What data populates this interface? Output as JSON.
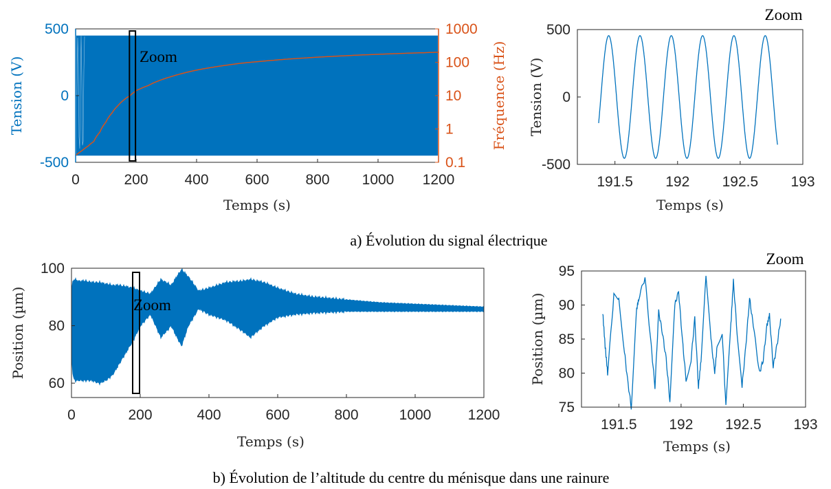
{
  "colors": {
    "blue": "#0072bd",
    "orange": "#d95319",
    "axis": "#262626",
    "black": "#000000"
  },
  "captions": {
    "a": "a) Évolution du signal électrique",
    "b": "b) Évolution de l’altitude du centre du ménisque dans une rainure"
  },
  "chart_data": [
    {
      "id": "a-main",
      "type": "line",
      "xlabel": "Temps (s)",
      "ylabel": "Tension (V)",
      "y2label": "Fréquence (Hz)",
      "xlim": [
        0,
        1200
      ],
      "ylim": [
        -500,
        500
      ],
      "y2lim": [
        0.1,
        1000
      ],
      "y2scale": "log",
      "xticks": [
        "0",
        "200",
        "400",
        "600",
        "800",
        "1000",
        "1200"
      ],
      "yticks": [
        "-500",
        "0",
        "500"
      ],
      "y2ticks": [
        "0.1",
        "1",
        "10",
        "100",
        "1000"
      ],
      "voltage_amplitude": 450,
      "frequency_curve": {
        "x": [
          0,
          20,
          40,
          60,
          80,
          100,
          120,
          140,
          160,
          180,
          200,
          240,
          280,
          320,
          360,
          400,
          450,
          500,
          550,
          600,
          650,
          700,
          750,
          800,
          850,
          900,
          950,
          1000,
          1050,
          1100,
          1150,
          1200
        ],
        "y": [
          0.16,
          0.22,
          0.3,
          0.42,
          0.8,
          1.6,
          3.0,
          5.0,
          7.5,
          10,
          14,
          20,
          29,
          38,
          48,
          58,
          70,
          82,
          94,
          104,
          114,
          124,
          133,
          142,
          150,
          158,
          166,
          173,
          180,
          187,
          193,
          200
        ]
      },
      "annotation": "Zoom",
      "zoom_box_x": [
        178,
        198
      ]
    },
    {
      "id": "a-zoom",
      "type": "line",
      "title": "Zoom",
      "xlabel": "Temps (s)",
      "ylabel": "Tension (V)",
      "xlim": [
        191.2,
        193
      ],
      "ylim": [
        -500,
        500
      ],
      "xticks": [
        "191.5",
        "192",
        "192.5",
        "193"
      ],
      "yticks": [
        "-500",
        "0",
        "500"
      ],
      "signal": {
        "x_start": 191.37,
        "x_end": 192.8,
        "amplitude": 455,
        "period": 0.25,
        "first_peak": 191.45
      }
    },
    {
      "id": "b-main",
      "type": "line",
      "xlabel": "Temps (s)",
      "ylabel": "Position (µm)",
      "xlim": [
        0,
        1200
      ],
      "ylim": [
        55,
        100
      ],
      "xticks": [
        "0",
        "200",
        "400",
        "600",
        "800",
        "1000",
        "1200"
      ],
      "yticks": [
        "60",
        "80",
        "100"
      ],
      "envelope": {
        "x": [
          0,
          5,
          10,
          20,
          40,
          60,
          80,
          100,
          120,
          140,
          160,
          180,
          200,
          230,
          260,
          290,
          320,
          340,
          370,
          400,
          450,
          500,
          520,
          560,
          600,
          650,
          700,
          800,
          900,
          1000,
          1100,
          1200
        ],
        "upper": [
          92,
          96,
          96,
          95.5,
          95.5,
          95,
          95,
          94.5,
          94,
          94,
          93.5,
          93,
          92,
          91,
          96,
          94,
          99.5,
          97,
          92,
          93,
          95,
          95.5,
          96,
          95,
          93,
          91,
          90,
          89,
          88,
          87.5,
          87,
          86.5
        ],
        "lower": [
          70,
          62,
          61,
          61,
          61,
          61,
          60,
          61,
          63,
          67,
          71,
          75,
          80,
          84,
          76,
          80,
          73,
          80,
          86,
          84,
          82,
          78,
          76,
          80,
          83,
          84,
          84.5,
          85,
          85,
          85,
          85,
          85
        ]
      },
      "annotation": "Zoom",
      "zoom_box_x": [
        178,
        198
      ]
    },
    {
      "id": "b-zoom",
      "type": "line",
      "title": "Zoom",
      "xlabel": "Temps (s)",
      "ylabel": "Position (µm)",
      "xlim": [
        191.2,
        193
      ],
      "ylim": [
        75,
        95
      ],
      "xticks": [
        "191.5",
        "192",
        "192.5",
        "193"
      ],
      "yticks": [
        "75",
        "80",
        "85",
        "90",
        "95"
      ],
      "signal": {
        "x": [
          191.37,
          191.39,
          191.41,
          191.46,
          191.5,
          191.54,
          191.57,
          191.6,
          191.64,
          191.66,
          191.71,
          191.76,
          191.79,
          191.82,
          191.85,
          191.88,
          191.91,
          191.95,
          191.98,
          192.01,
          192.04,
          192.08,
          192.11,
          192.14,
          192.16,
          192.2,
          192.24,
          192.27,
          192.29,
          192.33,
          192.36,
          192.4,
          192.42,
          192.45,
          192.49,
          192.52,
          192.55,
          192.58,
          192.63,
          192.66,
          192.69,
          192.71,
          192.74,
          192.77,
          192.8
        ],
        "y": [
          89,
          84,
          80,
          91.5,
          91,
          84,
          79,
          75,
          89,
          91,
          94,
          84,
          78,
          89,
          86,
          82,
          76,
          90,
          92,
          85,
          79,
          82,
          88,
          78,
          82,
          94.5,
          85,
          80,
          84,
          86,
          75,
          87,
          93.5,
          86,
          78,
          84,
          91,
          87,
          80,
          82,
          87,
          88.5,
          81,
          84,
          88
        ]
      }
    }
  ]
}
